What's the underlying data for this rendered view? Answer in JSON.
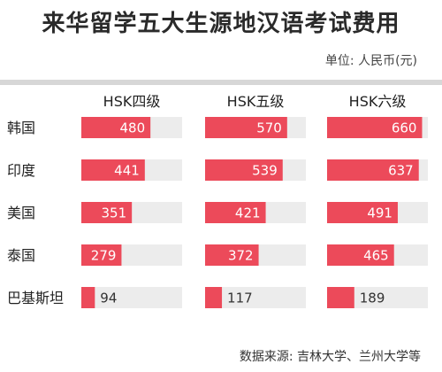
{
  "title": "来华留学五大生源地汉语考试费用",
  "unit": "单位: 人民币(元)",
  "source": "数据来源: 吉林大学、兰州大学等",
  "colors": {
    "bar": "#ec4a5a",
    "track": "#ececec",
    "divider": "#d7d7d7"
  },
  "chart_data": {
    "type": "bar",
    "orientation": "horizontal",
    "categories": [
      "韩国",
      "印度",
      "美国",
      "泰国",
      "巴基斯坦"
    ],
    "series": [
      {
        "name": "HSK四级",
        "values": [
          480,
          441,
          351,
          279,
          94
        ]
      },
      {
        "name": "HSK五级",
        "values": [
          570,
          539,
          421,
          372,
          117
        ]
      },
      {
        "name": "HSK六级",
        "values": [
          660,
          637,
          491,
          465,
          189
        ]
      }
    ],
    "xlim": [
      0,
      700
    ]
  }
}
